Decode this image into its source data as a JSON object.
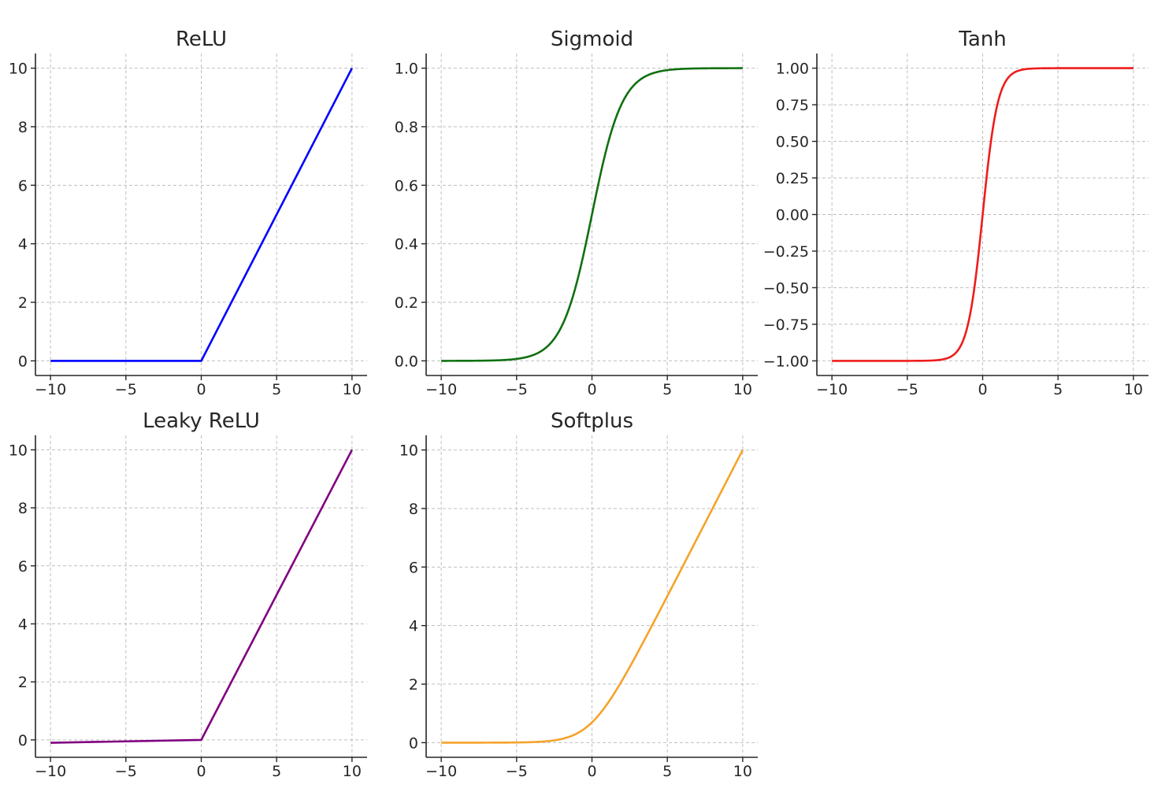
{
  "chart_data": [
    {
      "type": "line",
      "title": "ReLU",
      "function": "relu",
      "color": "#0000ff",
      "xlim": [
        -11,
        11
      ],
      "ylim": [
        -0.5,
        10.5
      ],
      "x": [
        -10,
        0,
        10
      ],
      "y": [
        0,
        0,
        10
      ],
      "xticks": [
        -10,
        -5,
        0,
        5,
        10
      ],
      "xtick_labels": [
        "−10",
        "−5",
        "0",
        "5",
        "10"
      ],
      "yticks": [
        0,
        2,
        4,
        6,
        8,
        10
      ],
      "ytick_labels": [
        "0",
        "2",
        "4",
        "6",
        "8",
        "10"
      ],
      "grid": true
    },
    {
      "type": "line",
      "title": "Sigmoid",
      "function": "sigmoid",
      "color": "#107010",
      "xlim": [
        -11,
        11
      ],
      "ylim": [
        -0.05,
        1.05
      ],
      "x": [
        -10,
        -5,
        -2,
        0,
        2,
        5,
        10
      ],
      "y": [
        0.0,
        0.007,
        0.12,
        0.5,
        0.88,
        0.993,
        1.0
      ],
      "xticks": [
        -10,
        -5,
        0,
        5,
        10
      ],
      "xtick_labels": [
        "−10",
        "−5",
        "0",
        "5",
        "10"
      ],
      "yticks": [
        0.0,
        0.2,
        0.4,
        0.6,
        0.8,
        1.0
      ],
      "ytick_labels": [
        "0.0",
        "0.2",
        "0.4",
        "0.6",
        "0.8",
        "1.0"
      ],
      "grid": true
    },
    {
      "type": "line",
      "title": "Tanh",
      "function": "tanh",
      "color": "#ee1c1c",
      "xlim": [
        -11,
        11
      ],
      "ylim": [
        -1.1,
        1.1
      ],
      "x": [
        -10,
        -2,
        -1,
        0,
        1,
        2,
        10
      ],
      "y": [
        -1.0,
        -0.96,
        -0.76,
        0.0,
        0.76,
        0.96,
        1.0
      ],
      "xticks": [
        -10,
        -5,
        0,
        5,
        10
      ],
      "xtick_labels": [
        "−10",
        "−5",
        "0",
        "5",
        "10"
      ],
      "yticks": [
        -1.0,
        -0.75,
        -0.5,
        -0.25,
        0.0,
        0.25,
        0.5,
        0.75,
        1.0
      ],
      "ytick_labels": [
        "−1.00",
        "−0.75",
        "−0.50",
        "−0.25",
        "0.00",
        "0.25",
        "0.50",
        "0.75",
        "1.00"
      ],
      "grid": true
    },
    {
      "type": "line",
      "title": "Leaky ReLU",
      "function": "leaky_relu",
      "color": "#800080",
      "xlim": [
        -11,
        11
      ],
      "ylim": [
        -0.6,
        10.5
      ],
      "x": [
        -10,
        0,
        10
      ],
      "y": [
        -0.1,
        0,
        10
      ],
      "xticks": [
        -10,
        -5,
        0,
        5,
        10
      ],
      "xtick_labels": [
        "−10",
        "−5",
        "0",
        "5",
        "10"
      ],
      "yticks": [
        0,
        2,
        4,
        6,
        8,
        10
      ],
      "ytick_labels": [
        "0",
        "2",
        "4",
        "6",
        "8",
        "10"
      ],
      "grid": true
    },
    {
      "type": "line",
      "title": "Softplus",
      "function": "softplus",
      "color": "#f5a32a",
      "xlim": [
        -11,
        11
      ],
      "ylim": [
        -0.5,
        10.5
      ],
      "x": [
        -10,
        -5,
        -2,
        0,
        2,
        5,
        10
      ],
      "y": [
        0.0,
        0.007,
        0.13,
        0.69,
        2.13,
        5.01,
        10.0
      ],
      "xticks": [
        -10,
        -5,
        0,
        5,
        10
      ],
      "xtick_labels": [
        "−10",
        "−5",
        "0",
        "5",
        "10"
      ],
      "yticks": [
        0,
        2,
        4,
        6,
        8,
        10
      ],
      "ytick_labels": [
        "0",
        "2",
        "4",
        "6",
        "8",
        "10"
      ],
      "grid": true
    }
  ]
}
